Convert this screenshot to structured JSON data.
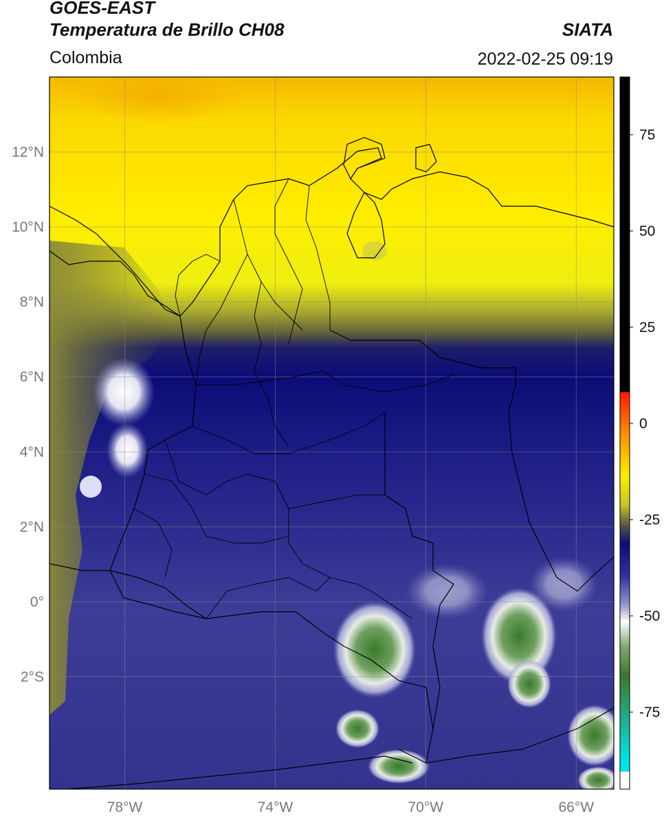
{
  "header": {
    "line1": "GOES-EAST",
    "line2": "Temperatura de Brillo CH08",
    "region": "Colombia",
    "organization": "SIATA",
    "datetime": "2022-02-25 09:19"
  },
  "map": {
    "lon_range": [
      -80,
      -65
    ],
    "lat_range": [
      -5,
      14
    ],
    "lat_ticks": [
      {
        "value": 12,
        "label": "12°N"
      },
      {
        "value": 10,
        "label": "10°N"
      },
      {
        "value": 8,
        "label": "8°N"
      },
      {
        "value": 6,
        "label": "6°N"
      },
      {
        "value": 4,
        "label": "4°N"
      },
      {
        "value": 2,
        "label": "2°N"
      },
      {
        "value": 0,
        "label": "0°"
      },
      {
        "value": -2,
        "label": "2°S"
      }
    ],
    "lon_ticks": [
      {
        "value": -78,
        "label": "78°W"
      },
      {
        "value": -74,
        "label": "74°W"
      },
      {
        "value": -70,
        "label": "70°W"
      },
      {
        "value": -66,
        "label": "66°W"
      }
    ],
    "grid": true
  },
  "colorbar": {
    "range": [
      -95,
      90
    ],
    "ticks": [
      {
        "value": 75,
        "label": "75"
      },
      {
        "value": 50,
        "label": "50"
      },
      {
        "value": 25,
        "label": "25"
      },
      {
        "value": 0,
        "label": "0"
      },
      {
        "value": -25,
        "label": "-25"
      },
      {
        "value": -50,
        "label": "-50"
      },
      {
        "value": -75,
        "label": "-75"
      }
    ],
    "colors": {
      "black": "#000000",
      "red": "#ff1a00",
      "orange": "#ff8c00",
      "yellow": "#ffee00",
      "olive": "#6b6a2a",
      "navy": "#0c0c78",
      "lavender": "#c8c8e8",
      "white": "#ffffff",
      "green": "#3a7a2a",
      "teal": "#1fae8a",
      "cyan": "#00e5e5"
    }
  }
}
